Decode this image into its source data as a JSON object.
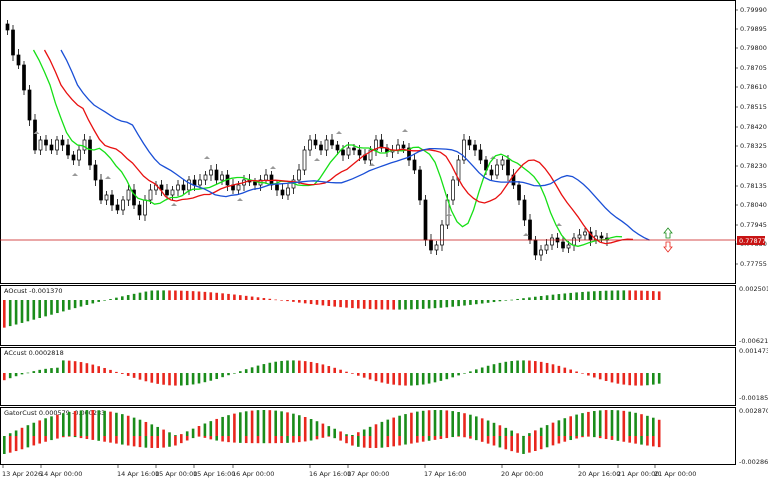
{
  "main": {
    "price_scale": [
      "0.79990",
      "0.79895",
      "0.79800",
      "0.78705",
      "0.78610",
      "0.78515",
      "0.78420",
      "0.78325",
      "0.78230",
      "0.78135",
      "0.78040",
      "0.77945",
      "0.77850",
      "0.77755"
    ],
    "current_price": "0.77877",
    "price_range": [
      0.777,
      0.7999
    ]
  },
  "ao_panel": {
    "label": "AOcust -0.001370",
    "scale_top": "0.002501",
    "scale_bottom": "-0.006217"
  },
  "ac_panel": {
    "label": "ACcust 0.0002818",
    "scale_top": "0.0014733",
    "scale_bottom": "-0.0018504"
  },
  "gator_panel": {
    "label": "GatorCust 0.000579 -0.000233",
    "scale_top": "0.002870",
    "scale_bottom": "-0.002860"
  },
  "time_axis": [
    "13 Apr 2026",
    "14 Apr 00:00",
    "14 Apr 16:00",
    "15 Apr 00:00",
    "15 Apr 16:00",
    "16 Apr 00:00",
    "16 Apr 16:00",
    "17 Apr 00:00",
    "17 Apr 16:00",
    "20 Apr 00:00",
    "20 Apr 16:00",
    "21 Apr 00:00",
    "21 Apr 00:00"
  ],
  "colors": {
    "up": "#1a8c1a",
    "down": "#e8261d",
    "line_green": "#16e016",
    "line_red": "#e81010",
    "line_blue": "#1a4fd6",
    "price_line": "#c81414"
  }
}
